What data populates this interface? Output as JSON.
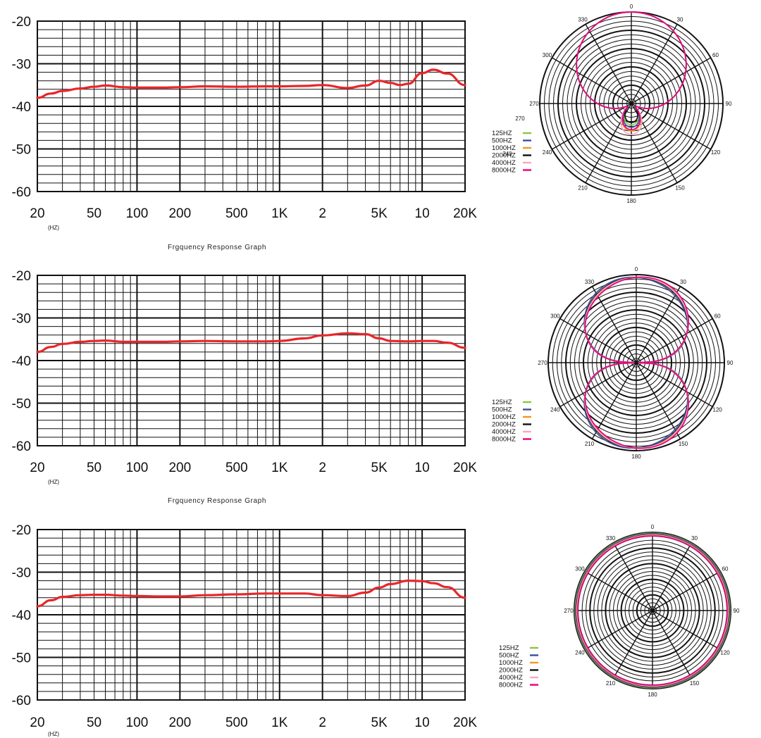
{
  "chart_data": [
    {
      "type": "line",
      "title": "Frgquency Response Graph",
      "x_scale": "log",
      "x_ticks": [
        "20",
        "50",
        "100",
        "200",
        "500",
        "1K",
        "2",
        "5K",
        "10",
        "20K"
      ],
      "x_tick_values": [
        20,
        50,
        100,
        200,
        500,
        1000,
        2000,
        5000,
        10000,
        20000
      ],
      "x_unit": "(HZ)",
      "y_ticks": [
        "-20",
        "-30",
        "-40",
        "-50",
        "-60"
      ],
      "y_tick_values": [
        -20,
        -30,
        -40,
        -50,
        -60
      ],
      "xlim": [
        20,
        20000
      ],
      "ylim": [
        -60,
        -20
      ],
      "grid": true,
      "line_color": "#e8262b",
      "series": [
        {
          "x": [
            20,
            25,
            30,
            40,
            50,
            60,
            80,
            100,
            150,
            200,
            300,
            500,
            800,
            1000,
            1500,
            2000,
            3000,
            4000,
            5000,
            6000,
            7000,
            8000,
            10000,
            12000,
            15000,
            20000
          ],
          "values": [
            -38,
            -37,
            -36.4,
            -35.8,
            -35.4,
            -35.1,
            -35.5,
            -35.6,
            -35.6,
            -35.5,
            -35.3,
            -35.4,
            -35.3,
            -35.3,
            -35.2,
            -35,
            -35.7,
            -35.1,
            -34,
            -34.5,
            -35,
            -34.7,
            -32.2,
            -31.4,
            -32.3,
            -35
          ]
        }
      ]
    },
    {
      "type": "line",
      "title": "Frgquency Response Graph",
      "x_scale": "log",
      "x_ticks": [
        "20",
        "50",
        "100",
        "200",
        "500",
        "1K",
        "2",
        "5K",
        "10",
        "20K"
      ],
      "x_tick_values": [
        20,
        50,
        100,
        200,
        500,
        1000,
        2000,
        5000,
        10000,
        20000
      ],
      "x_unit": "(HZ)",
      "y_ticks": [
        "-20",
        "-30",
        "-40",
        "-50",
        "-60"
      ],
      "y_tick_values": [
        -20,
        -30,
        -40,
        -50,
        -60
      ],
      "xlim": [
        20,
        20000
      ],
      "ylim": [
        -60,
        -20
      ],
      "grid": true,
      "line_color": "#e8262b",
      "series": [
        {
          "x": [
            20,
            25,
            30,
            40,
            50,
            60,
            80,
            100,
            150,
            200,
            300,
            500,
            800,
            1000,
            1500,
            2000,
            3000,
            4000,
            5000,
            6000,
            8000,
            10000,
            12000,
            15000,
            20000
          ],
          "values": [
            -38,
            -36.8,
            -36.1,
            -35.6,
            -35.4,
            -35.3,
            -35.6,
            -35.6,
            -35.6,
            -35.5,
            -35.4,
            -35.5,
            -35.5,
            -35.4,
            -34.8,
            -34.1,
            -33.6,
            -33.8,
            -34.8,
            -35.4,
            -35.5,
            -35.4,
            -35.4,
            -35.8,
            -37
          ]
        }
      ]
    },
    {
      "type": "line",
      "title": "",
      "x_scale": "log",
      "x_ticks": [
        "20",
        "50",
        "100",
        "200",
        "500",
        "1K",
        "2",
        "5K",
        "10",
        "20K"
      ],
      "x_tick_values": [
        20,
        50,
        100,
        200,
        500,
        1000,
        2000,
        5000,
        10000,
        20000
      ],
      "x_unit": "(HZ)",
      "y_ticks": [
        "-20",
        "-30",
        "-40",
        "-50",
        "-60"
      ],
      "y_tick_values": [
        -20,
        -30,
        -40,
        -50,
        -60
      ],
      "xlim": [
        20,
        20000
      ],
      "ylim": [
        -60,
        -20
      ],
      "grid": true,
      "line_color": "#e8262b",
      "series": [
        {
          "x": [
            20,
            25,
            30,
            40,
            50,
            60,
            80,
            100,
            150,
            200,
            300,
            500,
            800,
            1000,
            1500,
            2000,
            3000,
            4000,
            5000,
            6000,
            8000,
            10000,
            12000,
            15000,
            20000
          ],
          "values": [
            -38,
            -36.6,
            -35.8,
            -35.4,
            -35.3,
            -35.3,
            -35.5,
            -35.6,
            -35.7,
            -35.7,
            -35.4,
            -35.2,
            -35,
            -35,
            -35,
            -35.4,
            -35.6,
            -34.8,
            -33.6,
            -32.8,
            -32,
            -32.1,
            -32.6,
            -33.5,
            -36
          ]
        }
      ]
    },
    {
      "type": "polar",
      "pattern": "supercardioid",
      "angle_labels": [
        "0",
        "30",
        "60",
        "90",
        "120",
        "150",
        "180",
        "210",
        "240",
        "270",
        "300",
        "330"
      ],
      "extra_labels": [
        "270",
        "240"
      ],
      "legend": [
        {
          "label": "125HZ",
          "color": "#8cc63f"
        },
        {
          "label": "500HZ",
          "color": "#3b4fa0"
        },
        {
          "label": "1000HZ",
          "color": "#f7941d"
        },
        {
          "label": "2000HZ",
          "color": "#111111"
        },
        {
          "label": "4000HZ",
          "color": "#f7a8c4"
        },
        {
          "label": "8000HZ",
          "color": "#e6007e"
        }
      ]
    },
    {
      "type": "polar",
      "pattern": "figure-8",
      "angle_labels": [
        "0",
        "30",
        "60",
        "90",
        "120",
        "150",
        "180",
        "210",
        "240",
        "270",
        "300",
        "330"
      ],
      "legend": [
        {
          "label": "125HZ",
          "color": "#8cc63f"
        },
        {
          "label": "500HZ",
          "color": "#3b4fa0"
        },
        {
          "label": "1000HZ",
          "color": "#f7941d"
        },
        {
          "label": "2000HZ",
          "color": "#111111"
        },
        {
          "label": "4000HZ",
          "color": "#f7a8c4"
        },
        {
          "label": "8000HZ",
          "color": "#e6007e"
        }
      ]
    },
    {
      "type": "polar",
      "pattern": "omnidirectional",
      "angle_labels": [
        "0",
        "30",
        "60",
        "90",
        "120",
        "150",
        "180",
        "210",
        "240",
        "270",
        "300",
        "330"
      ],
      "legend": [
        {
          "label": "125HZ",
          "color": "#8cc63f"
        },
        {
          "label": "500HZ",
          "color": "#3b4fa0"
        },
        {
          "label": "1000HZ",
          "color": "#f7941d"
        },
        {
          "label": "2000HZ",
          "color": "#111111"
        },
        {
          "label": "4000HZ",
          "color": "#f7a8c4"
        },
        {
          "label": "8000HZ",
          "color": "#e6007e"
        }
      ]
    }
  ]
}
